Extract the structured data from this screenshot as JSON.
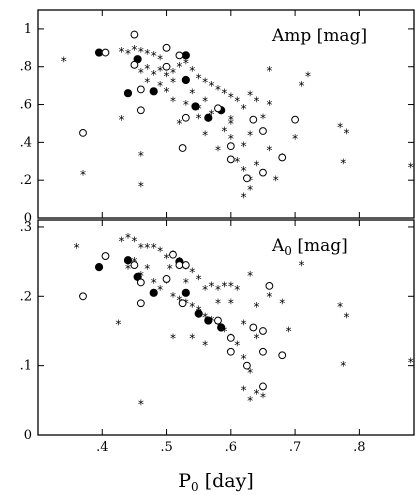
{
  "chart_data": [
    {
      "type": "scatter",
      "panel": "top",
      "title": "Amp [mag]",
      "xlabel": "",
      "ylabel": "",
      "xlim": [
        0.3,
        0.885
      ],
      "ylim": [
        0.0,
        1.1
      ],
      "xticks": [
        0.4,
        0.5,
        0.6,
        0.7,
        0.8
      ],
      "xtick_labels": [],
      "yticks": [
        0.0,
        0.2,
        0.4,
        0.6,
        0.8,
        1.0
      ],
      "ytick_labels": [
        "0",
        ".2",
        ".4",
        ".6",
        ".8",
        "1"
      ],
      "grid": false,
      "legend": "none",
      "series": [
        {
          "marker": "asterisk",
          "points": [
            [
              0.34,
              0.83
            ],
            [
              0.37,
              0.23
            ],
            [
              0.43,
              0.88
            ],
            [
              0.44,
              0.87
            ],
            [
              0.45,
              0.89
            ],
            [
              0.46,
              0.88
            ],
            [
              0.47,
              0.87
            ],
            [
              0.48,
              0.86
            ],
            [
              0.49,
              0.84
            ],
            [
              0.45,
              0.8
            ],
            [
              0.46,
              0.77
            ],
            [
              0.47,
              0.79
            ],
            [
              0.48,
              0.76
            ],
            [
              0.49,
              0.78
            ],
            [
              0.5,
              0.75
            ],
            [
              0.51,
              0.77
            ],
            [
              0.52,
              0.8
            ],
            [
              0.53,
              0.82
            ],
            [
              0.54,
              0.78
            ],
            [
              0.55,
              0.74
            ],
            [
              0.56,
              0.72
            ],
            [
              0.57,
              0.7
            ],
            [
              0.58,
              0.68
            ],
            [
              0.59,
              0.66
            ],
            [
              0.6,
              0.64
            ],
            [
              0.61,
              0.62
            ],
            [
              0.63,
              0.65
            ],
            [
              0.64,
              0.62
            ],
            [
              0.66,
              0.6
            ],
            [
              0.63,
              0.44
            ],
            [
              0.62,
              0.38
            ],
            [
              0.61,
              0.3
            ],
            [
              0.62,
              0.25
            ],
            [
              0.63,
              0.2
            ],
            [
              0.63,
              0.15
            ],
            [
              0.62,
              0.11
            ],
            [
              0.66,
              0.36
            ],
            [
              0.68,
              0.32
            ],
            [
              0.7,
              0.42
            ],
            [
              0.71,
              0.7
            ],
            [
              0.72,
              0.75
            ],
            [
              0.77,
              0.48
            ],
            [
              0.78,
              0.45
            ],
            [
              0.775,
              0.29
            ],
            [
              0.88,
              0.27
            ],
            [
              0.46,
              0.33
            ],
            [
              0.46,
              0.17
            ],
            [
              0.43,
              0.52
            ],
            [
              0.51,
              0.62
            ],
            [
              0.53,
              0.6
            ],
            [
              0.55,
              0.58
            ],
            [
              0.57,
              0.55
            ],
            [
              0.6,
              0.52
            ],
            [
              0.6,
              0.5
            ],
            [
              0.59,
              0.46
            ],
            [
              0.56,
              0.44
            ],
            [
              0.58,
              0.36
            ],
            [
              0.62,
              0.58
            ],
            [
              0.65,
              0.53
            ],
            [
              0.52,
              0.5
            ],
            [
              0.54,
              0.66
            ],
            [
              0.56,
              0.62
            ],
            [
              0.5,
              0.67
            ],
            [
              0.49,
              0.7
            ],
            [
              0.51,
              0.72
            ],
            [
              0.47,
              0.72
            ],
            [
              0.55,
              0.53
            ],
            [
              0.6,
              0.42
            ],
            [
              0.64,
              0.28
            ],
            [
              0.67,
              0.2
            ],
            [
              0.66,
              0.78
            ]
          ]
        },
        {
          "marker": "filled-circle",
          "points": [
            [
              0.395,
              0.875
            ],
            [
              0.44,
              0.66
            ],
            [
              0.455,
              0.84
            ],
            [
              0.48,
              0.67
            ],
            [
              0.53,
              0.86
            ],
            [
              0.53,
              0.73
            ],
            [
              0.545,
              0.59
            ],
            [
              0.565,
              0.53
            ],
            [
              0.585,
              0.57
            ]
          ]
        },
        {
          "marker": "open-circle",
          "points": [
            [
              0.37,
              0.45
            ],
            [
              0.405,
              0.875
            ],
            [
              0.45,
              0.97
            ],
            [
              0.45,
              0.81
            ],
            [
              0.46,
              0.68
            ],
            [
              0.46,
              0.57
            ],
            [
              0.5,
              0.9
            ],
            [
              0.5,
              0.8
            ],
            [
              0.52,
              0.86
            ],
            [
              0.525,
              0.37
            ],
            [
              0.53,
              0.53
            ],
            [
              0.58,
              0.58
            ],
            [
              0.6,
              0.38
            ],
            [
              0.6,
              0.31
            ],
            [
              0.625,
              0.21
            ],
            [
              0.635,
              0.52
            ],
            [
              0.65,
              0.46
            ],
            [
              0.65,
              0.24
            ],
            [
              0.68,
              0.32
            ],
            [
              0.7,
              0.52
            ]
          ]
        }
      ]
    },
    {
      "type": "scatter",
      "panel": "bottom",
      "title": "A0 [mag]",
      "xlabel": "P0 [day]",
      "ylabel": "",
      "xlim": [
        0.3,
        0.885
      ],
      "ylim": [
        0.0,
        0.31
      ],
      "xticks": [
        0.4,
        0.5,
        0.6,
        0.7,
        0.8
      ],
      "xtick_labels": [
        ".4",
        ".5",
        ".6",
        ".7",
        ".8"
      ],
      "yticks": [
        0.0,
        0.1,
        0.2,
        0.3
      ],
      "ytick_labels": [
        "0",
        ".1",
        ".2",
        ".3"
      ],
      "grid": false,
      "legend": "none",
      "series": [
        {
          "marker": "asterisk",
          "points": [
            [
              0.36,
              0.27
            ],
            [
              0.43,
              0.28
            ],
            [
              0.44,
              0.285
            ],
            [
              0.45,
              0.28
            ],
            [
              0.46,
              0.27
            ],
            [
              0.47,
              0.27
            ],
            [
              0.48,
              0.27
            ],
            [
              0.49,
              0.265
            ],
            [
              0.5,
              0.255
            ],
            [
              0.51,
              0.26
            ],
            [
              0.52,
              0.25
            ],
            [
              0.53,
              0.24
            ],
            [
              0.54,
              0.235
            ],
            [
              0.55,
              0.225
            ],
            [
              0.56,
              0.21
            ],
            [
              0.57,
              0.215
            ],
            [
              0.58,
              0.21
            ],
            [
              0.59,
              0.215
            ],
            [
              0.6,
              0.215
            ],
            [
              0.44,
              0.24
            ],
            [
              0.45,
              0.25
            ],
            [
              0.46,
              0.23
            ],
            [
              0.47,
              0.24
            ],
            [
              0.48,
              0.22
            ],
            [
              0.49,
              0.21
            ],
            [
              0.5,
              0.22
            ],
            [
              0.51,
              0.2
            ],
            [
              0.52,
              0.195
            ],
            [
              0.53,
              0.19
            ],
            [
              0.54,
              0.185
            ],
            [
              0.55,
              0.18
            ],
            [
              0.56,
              0.17
            ],
            [
              0.57,
              0.165
            ],
            [
              0.58,
              0.16
            ],
            [
              0.59,
              0.15
            ],
            [
              0.6,
              0.14
            ],
            [
              0.61,
              0.13
            ],
            [
              0.62,
              0.11
            ],
            [
              0.63,
              0.09
            ],
            [
              0.62,
              0.065
            ],
            [
              0.63,
              0.05
            ],
            [
              0.64,
              0.06
            ],
            [
              0.65,
              0.055
            ],
            [
              0.64,
              0.185
            ],
            [
              0.66,
              0.2
            ],
            [
              0.68,
              0.19
            ],
            [
              0.69,
              0.15
            ],
            [
              0.71,
              0.245
            ],
            [
              0.77,
              0.185
            ],
            [
              0.78,
              0.17
            ],
            [
              0.775,
              0.1
            ],
            [
              0.88,
              0.105
            ],
            [
              0.46,
              0.045
            ],
            [
              0.425,
              0.16
            ],
            [
              0.51,
              0.14
            ],
            [
              0.54,
              0.14
            ],
            [
              0.56,
              0.13
            ],
            [
              0.62,
              0.16
            ],
            [
              0.64,
              0.14
            ],
            [
              0.6,
              0.19
            ],
            [
              0.61,
              0.21
            ],
            [
              0.63,
              0.23
            ],
            [
              0.58,
              0.19
            ],
            [
              0.53,
              0.22
            ],
            [
              0.505,
              0.24
            ]
          ]
        },
        {
          "marker": "filled-circle",
          "points": [
            [
              0.395,
              0.242
            ],
            [
              0.44,
              0.252
            ],
            [
              0.455,
              0.228
            ],
            [
              0.48,
              0.205
            ],
            [
              0.52,
              0.25
            ],
            [
              0.53,
              0.205
            ],
            [
              0.55,
              0.175
            ],
            [
              0.565,
              0.165
            ],
            [
              0.585,
              0.155
            ]
          ]
        },
        {
          "marker": "open-circle",
          "points": [
            [
              0.37,
              0.2
            ],
            [
              0.405,
              0.258
            ],
            [
              0.45,
              0.245
            ],
            [
              0.46,
              0.22
            ],
            [
              0.46,
              0.19
            ],
            [
              0.5,
              0.225
            ],
            [
              0.51,
              0.26
            ],
            [
              0.52,
              0.245
            ],
            [
              0.525,
              0.19
            ],
            [
              0.53,
              0.245
            ],
            [
              0.58,
              0.165
            ],
            [
              0.6,
              0.14
            ],
            [
              0.6,
              0.12
            ],
            [
              0.625,
              0.1
            ],
            [
              0.635,
              0.155
            ],
            [
              0.65,
              0.15
            ],
            [
              0.65,
              0.07
            ],
            [
              0.66,
              0.215
            ],
            [
              0.68,
              0.115
            ],
            [
              0.65,
              0.12
            ]
          ]
        }
      ]
    }
  ]
}
